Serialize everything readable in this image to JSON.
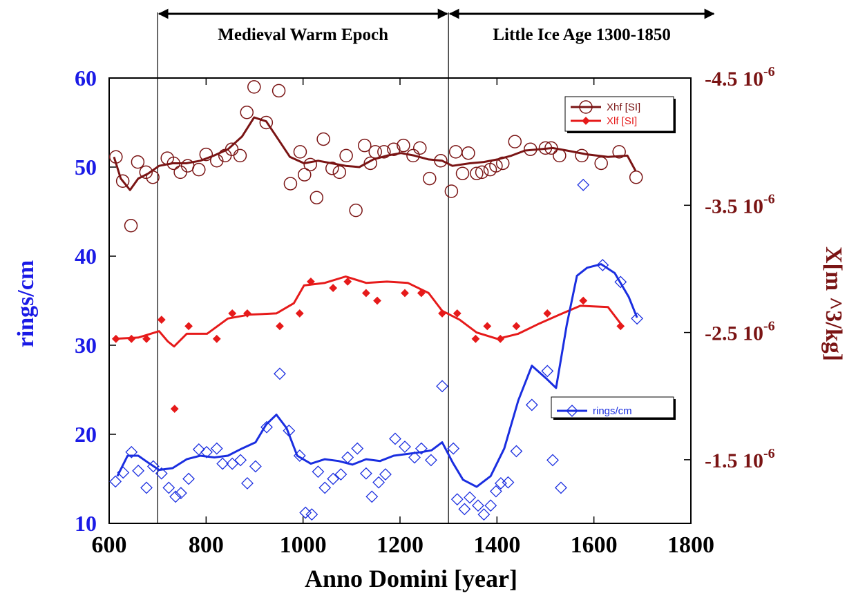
{
  "chart_data": {
    "type": "scatter",
    "xlabel": "Anno Domini [year]",
    "ylabel": "rings/cm",
    "y2label": "X[m ^3/kg]",
    "xlim": [
      600,
      1800
    ],
    "xticks": [
      600,
      800,
      1000,
      1200,
      1400,
      1600,
      1800
    ],
    "ylim": [
      10,
      60
    ],
    "yticks": [
      10,
      20,
      30,
      40,
      50,
      60
    ],
    "y2lim": [
      -1e-06,
      -4.5e-06
    ],
    "y2ticks": [
      {
        "value": -4.5e-06,
        "label": "-4.5 10"
      },
      {
        "value": -3.5e-06,
        "label": "-3.5 10"
      },
      {
        "value": -2.5e-06,
        "label": "-2.5 10"
      },
      {
        "value": -1.5e-06,
        "label": "-1.5 10"
      }
    ],
    "y2tick_exponent": "-6",
    "ycolor": "#1a1ae6",
    "y2color": "#7a1414",
    "periods": [
      {
        "label": "Medieval Warm Epoch",
        "start": 700,
        "end": 1300
      },
      {
        "label": "Little Ice Age 1300-1850",
        "start": 1300,
        "end": 1850
      }
    ],
    "series": [
      {
        "name": "Xhf [SI]",
        "color": "#7a1414",
        "marker": "circle",
        "axis": "y2",
        "legend": "upper right",
        "x": [
          614,
          628,
          645,
          659,
          676,
          690,
          720,
          733,
          747,
          762,
          785,
          800,
          822,
          839,
          853,
          870,
          884,
          899,
          924,
          950,
          974,
          994,
          1003,
          1015,
          1028,
          1042,
          1060,
          1075,
          1089,
          1109,
          1127,
          1139,
          1149,
          1167,
          1187,
          1207,
          1227,
          1241,
          1261,
          1284,
          1306,
          1315,
          1329,
          1341,
          1358,
          1369,
          1386,
          1398,
          1412,
          1437,
          1469,
          1500,
          1512,
          1529,
          1575,
          1615,
          1652,
          1687
        ],
        "values": [
          -3.88e-06,
          -3.69e-06,
          -3.34e-06,
          -3.84e-06,
          -3.76e-06,
          -3.72e-06,
          -3.87e-06,
          -3.83e-06,
          -3.76e-06,
          -3.81e-06,
          -3.78e-06,
          -3.9e-06,
          -3.85e-06,
          -3.89e-06,
          -3.94e-06,
          -3.89e-06,
          -4.23e-06,
          -4.43e-06,
          -4.15e-06,
          -4.4e-06,
          -3.67e-06,
          -3.92e-06,
          -3.74e-06,
          -3.82e-06,
          -3.56e-06,
          -4.02e-06,
          -3.79e-06,
          -3.76e-06,
          -3.89e-06,
          -3.46e-06,
          -3.97e-06,
          -3.83e-06,
          -3.92e-06,
          -3.92e-06,
          -3.94e-06,
          -3.97e-06,
          -3.89e-06,
          -3.95e-06,
          -3.71e-06,
          -3.85e-06,
          -3.61e-06,
          -3.92e-06,
          -3.75e-06,
          -3.91e-06,
          -3.75e-06,
          -3.76e-06,
          -3.78e-06,
          -3.81e-06,
          -3.83e-06,
          -4e-06,
          -3.94e-06,
          -3.95e-06,
          -3.95e-06,
          -3.89e-06,
          -3.89e-06,
          -3.83e-06,
          -3.92e-06,
          -3.72e-06
        ],
        "smooth_x": [
          610,
          624,
          643,
          660,
          681,
          703,
          731,
          759,
          788,
          816,
          845,
          874,
          899,
          924,
          945,
          973,
          1002,
          1031,
          1059,
          1088,
          1116,
          1145,
          1173,
          1202,
          1230,
          1259,
          1287,
          1308,
          1344,
          1373,
          1401,
          1430,
          1458,
          1487,
          1515,
          1544,
          1586,
          1629,
          1669,
          1686
        ],
        "smooth_values": [
          -3.88e-06,
          -3.71e-06,
          -3.62e-06,
          -3.71e-06,
          -3.75e-06,
          -3.81e-06,
          -3.83e-06,
          -3.83e-06,
          -3.85e-06,
          -3.89e-06,
          -3.94e-06,
          -4.04e-06,
          -4.19e-06,
          -4.16e-06,
          -4.04e-06,
          -3.88e-06,
          -3.83e-06,
          -3.85e-06,
          -3.83e-06,
          -3.81e-06,
          -3.8e-06,
          -3.86e-06,
          -3.89e-06,
          -3.91e-06,
          -3.89e-06,
          -3.86e-06,
          -3.85e-06,
          -3.81e-06,
          -3.83e-06,
          -3.84e-06,
          -3.86e-06,
          -3.89e-06,
          -3.93e-06,
          -3.94e-06,
          -3.95e-06,
          -3.93e-06,
          -3.9e-06,
          -3.88e-06,
          -3.89e-06,
          -3.77e-06
        ]
      },
      {
        "name": "Xlf [SI]",
        "color": "#e61a1a",
        "marker": "filled-diamond",
        "axis": "y2",
        "legend": "upper right",
        "x": [
          614,
          646,
          677,
          708,
          735,
          764,
          822,
          854,
          885,
          952,
          993,
          1016,
          1062,
          1092,
          1130,
          1153,
          1210,
          1244,
          1287,
          1318,
          1356,
          1380,
          1407,
          1440,
          1504,
          1578,
          1655
        ],
        "values": [
          -2.45e-06,
          -2.45e-06,
          -2.45e-06,
          -2.6e-06,
          -1.9e-06,
          -2.55e-06,
          -2.45e-06,
          -2.65e-06,
          -2.65e-06,
          -2.55e-06,
          -2.65e-06,
          -2.9e-06,
          -2.85e-06,
          -2.9e-06,
          -2.81e-06,
          -2.75e-06,
          -2.81e-06,
          -2.81e-06,
          -2.65e-06,
          -2.65e-06,
          -2.45e-06,
          -2.55e-06,
          -2.45e-06,
          -2.55e-06,
          -2.65e-06,
          -2.75e-06,
          -2.55e-06
        ],
        "smooth_x": [
          610,
          660,
          703,
          721,
          734,
          760,
          802,
          845,
          888,
          945,
          981,
          1002,
          1045,
          1088,
          1130,
          1173,
          1216,
          1259,
          1287,
          1323,
          1358,
          1401,
          1444,
          1487,
          1529,
          1572,
          1629,
          1655
        ],
        "smooth_values": [
          -2.45e-06,
          -2.46e-06,
          -2.51e-06,
          -2.43e-06,
          -2.39e-06,
          -2.49e-06,
          -2.49e-06,
          -2.61e-06,
          -2.64e-06,
          -2.65e-06,
          -2.73e-06,
          -2.87e-06,
          -2.89e-06,
          -2.94e-06,
          -2.89e-06,
          -2.9e-06,
          -2.89e-06,
          -2.81e-06,
          -2.67e-06,
          -2.6e-06,
          -2.5e-06,
          -2.45e-06,
          -2.49e-06,
          -2.57e-06,
          -2.64e-06,
          -2.71e-06,
          -2.7e-06,
          -2.57e-06
        ]
      },
      {
        "name": "rings/cm",
        "color": "#1a2ee0",
        "marker": "diamond",
        "axis": "y",
        "legend": "middle right",
        "x": [
          613,
          629,
          646,
          660,
          677,
          691,
          708,
          723,
          737,
          748,
          764,
          785,
          801,
          822,
          834,
          854,
          871,
          885,
          902,
          925,
          952,
          971,
          993,
          1005,
          1018,
          1031,
          1045,
          1062,
          1078,
          1092,
          1112,
          1130,
          1142,
          1156,
          1170,
          1190,
          1210,
          1230,
          1244,
          1264,
          1287,
          1310,
          1318,
          1333,
          1344,
          1361,
          1373,
          1387,
          1398,
          1408,
          1423,
          1440,
          1472,
          1504,
          1515,
          1532,
          1578,
          1618,
          1655,
          1689
        ],
        "values": [
          14.7,
          15.7,
          18.0,
          15.9,
          14.0,
          16.4,
          15.6,
          14.0,
          13.0,
          13.4,
          15.0,
          18.3,
          18.0,
          18.4,
          16.7,
          16.7,
          17.1,
          14.5,
          16.4,
          20.8,
          26.8,
          20.4,
          17.6,
          11.2,
          11.0,
          15.8,
          14.0,
          15.0,
          15.5,
          17.4,
          18.4,
          15.6,
          13.0,
          14.6,
          15.5,
          19.5,
          18.6,
          17.4,
          18.4,
          17.1,
          25.4,
          18.4,
          12.7,
          11.6,
          12.9,
          12.0,
          11.0,
          12.0,
          13.6,
          14.5,
          14.6,
          18.1,
          23.3,
          27.1,
          17.1,
          14.0,
          48.0,
          39.0,
          37.1,
          33.0
        ],
        "smooth_x": [
          617,
          638,
          660,
          681,
          703,
          731,
          760,
          788,
          817,
          845,
          874,
          902,
          924,
          945,
          966,
          988,
          1016,
          1045,
          1073,
          1102,
          1130,
          1159,
          1187,
          1216,
          1244,
          1265,
          1287,
          1309,
          1330,
          1358,
          1387,
          1415,
          1444,
          1472,
          1501,
          1522,
          1544,
          1565,
          1586,
          1615,
          1643,
          1672,
          1689
        ],
        "smooth_values": [
          15.3,
          17.6,
          17.6,
          16.8,
          16.0,
          16.2,
          17.2,
          17.6,
          17.4,
          17.6,
          18.4,
          19.1,
          21.1,
          22.2,
          20.7,
          17.6,
          16.7,
          17.2,
          17.0,
          16.6,
          17.2,
          17.0,
          17.6,
          17.8,
          18.0,
          18.2,
          19.1,
          16.8,
          14.9,
          14.1,
          15.3,
          18.4,
          23.8,
          27.7,
          26.3,
          25.2,
          32.3,
          37.8,
          38.7,
          39.1,
          38.1,
          35.4,
          33.1
        ]
      }
    ]
  }
}
